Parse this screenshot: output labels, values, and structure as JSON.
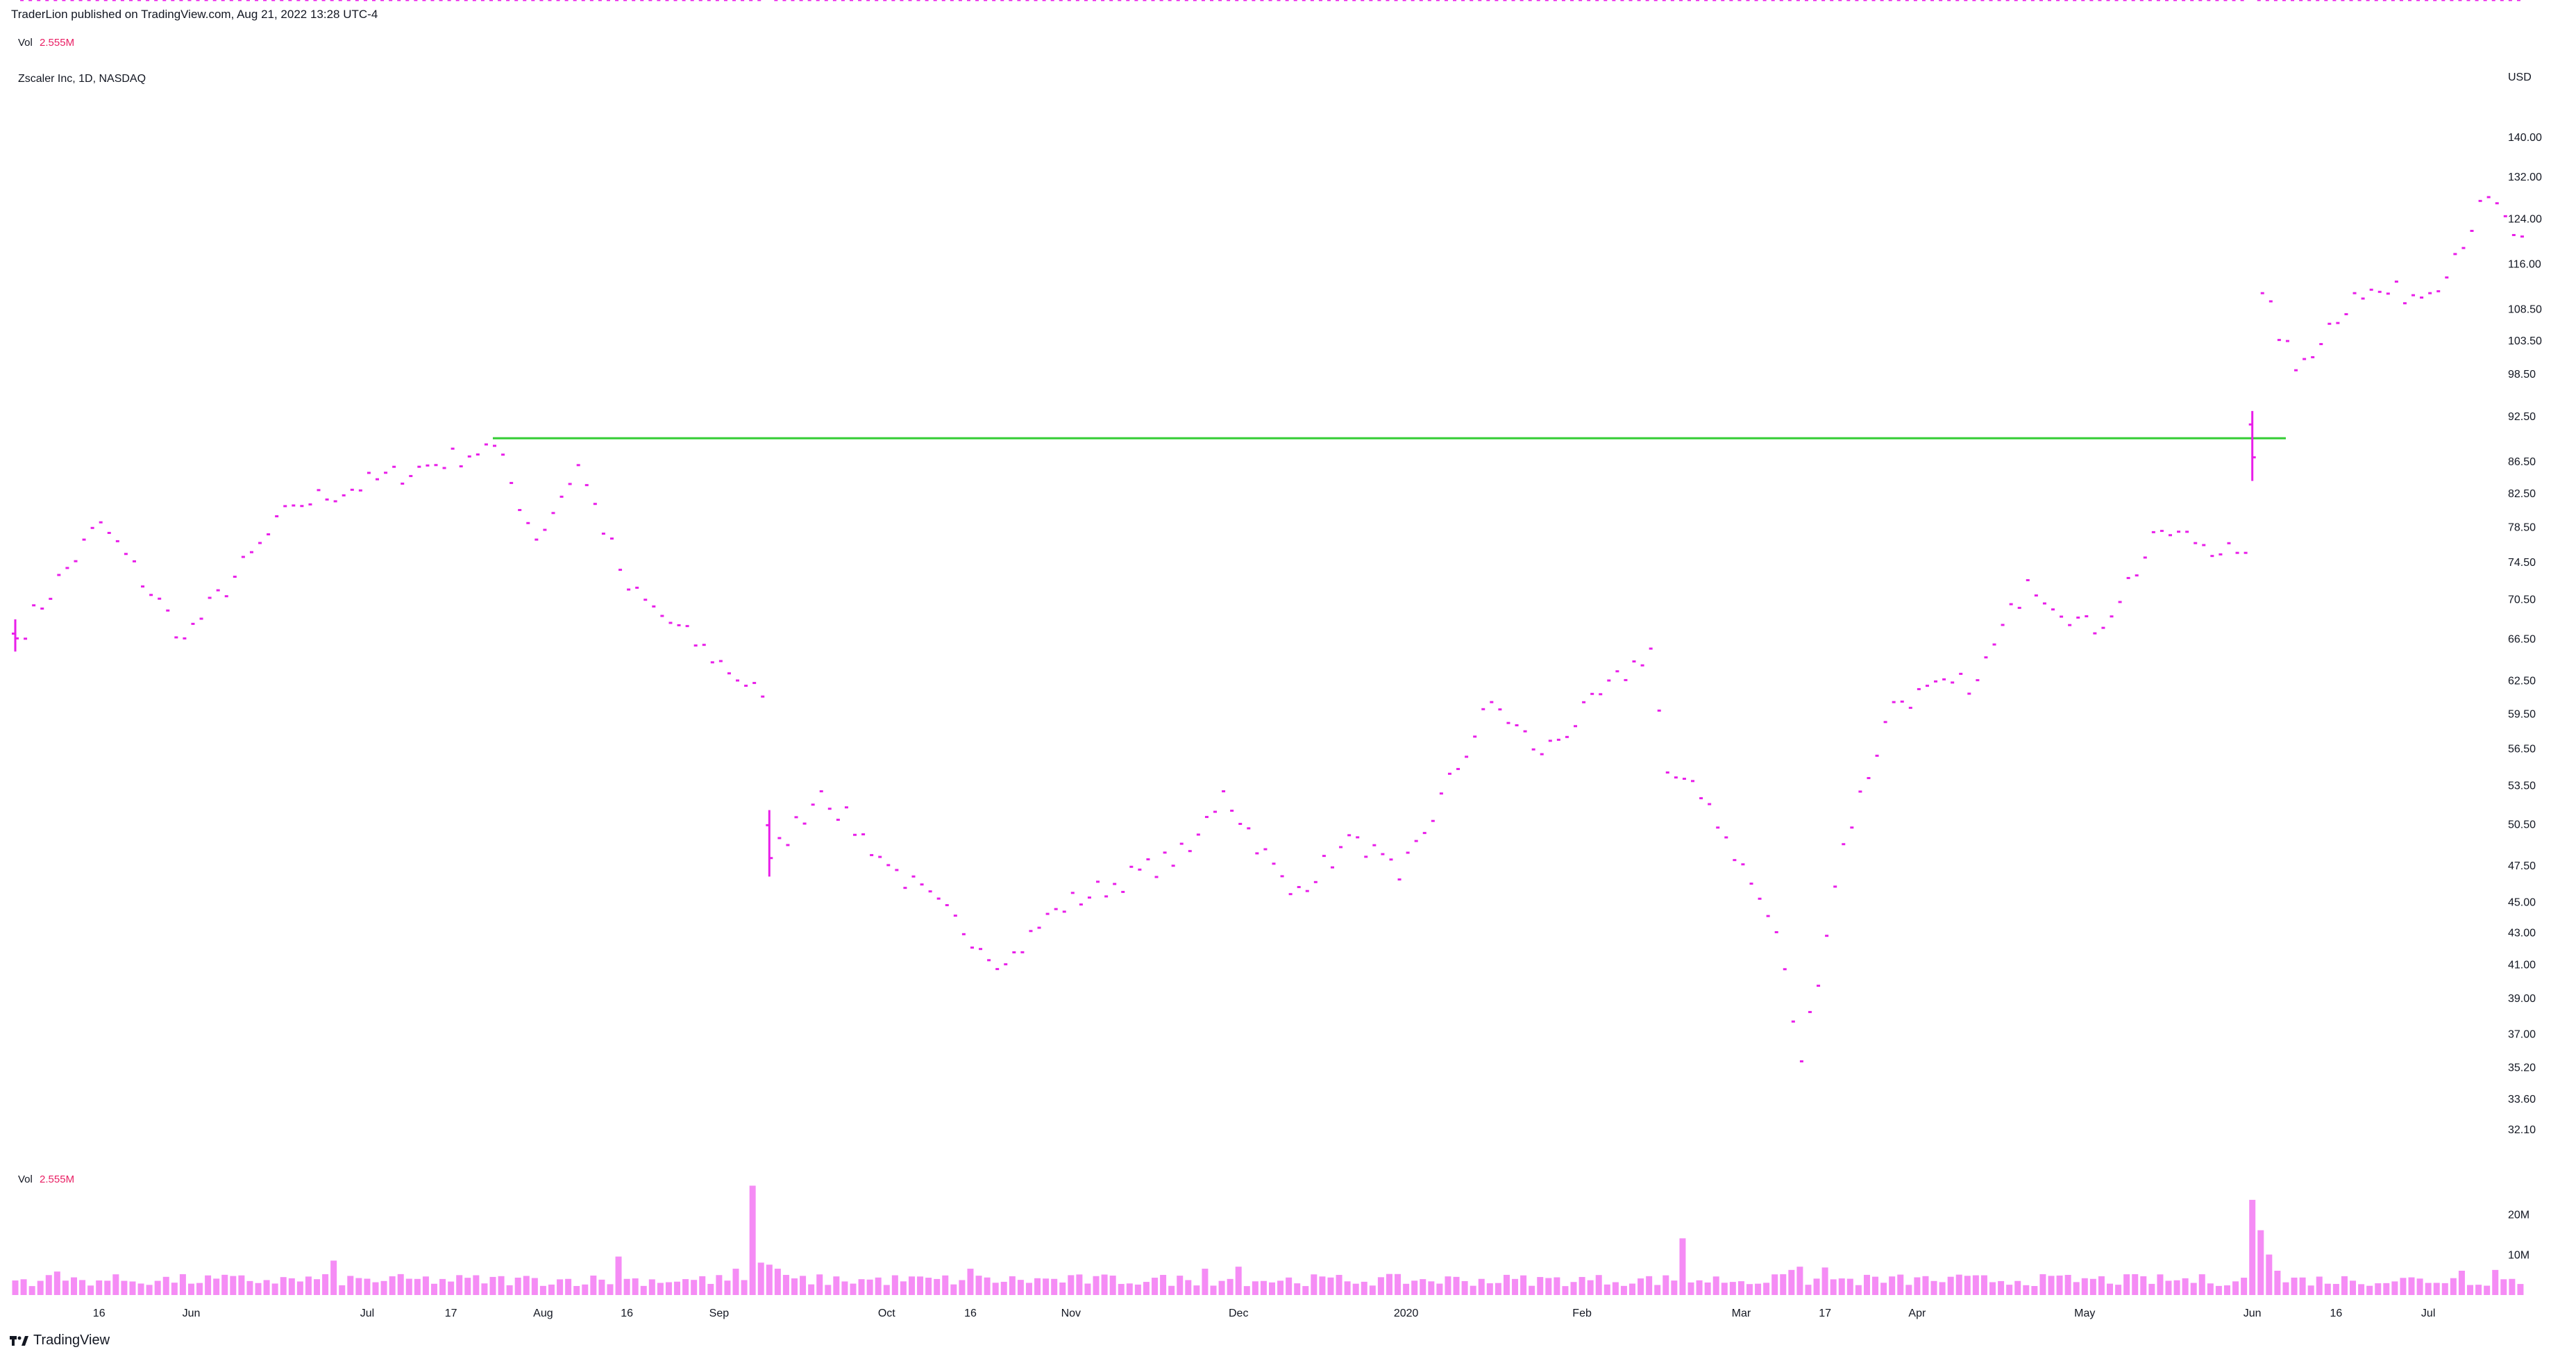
{
  "header": {
    "published": "TraderLion published on TradingView.com, Aug 21, 2022 13:28 UTC-4",
    "vol_label": "Vol",
    "vol_value": "2.555M",
    "symbol": "Zscaler Inc, 1D, NASDAQ"
  },
  "footer": {
    "brand": "TradingView"
  },
  "colors": {
    "up": "#2962ff",
    "down": "#e91ee9",
    "up_vol": "#7ea7f5",
    "down_vol": "#f58cf5",
    "resistance": "#33cc33",
    "vol_text": "#e91e63"
  },
  "chart_data": {
    "type": "ohlc",
    "symbol": "Zscaler Inc",
    "interval": "1D",
    "exchange": "NASDAQ",
    "currency": "USD",
    "scale": "log",
    "ylim": [
      31,
      150
    ],
    "y_ticks": [
      "140.00",
      "132.00",
      "124.00",
      "116.00",
      "108.50",
      "103.50",
      "98.50",
      "92.50",
      "86.50",
      "82.50",
      "78.50",
      "74.50",
      "70.50",
      "66.50",
      "62.50",
      "59.50",
      "56.50",
      "53.50",
      "50.50",
      "47.50",
      "45.00",
      "43.00",
      "41.00",
      "39.00",
      "37.00",
      "35.20",
      "33.60",
      "32.10"
    ],
    "x_ticks": [
      {
        "label": "16",
        "bar": 10
      },
      {
        "label": "Jun",
        "bar": 21
      },
      {
        "label": "Jul",
        "bar": 42
      },
      {
        "label": "17",
        "bar": 52
      },
      {
        "label": "Aug",
        "bar": 63
      },
      {
        "label": "16",
        "bar": 73
      },
      {
        "label": "Sep",
        "bar": 84
      },
      {
        "label": "Oct",
        "bar": 104
      },
      {
        "label": "16",
        "bar": 114
      },
      {
        "label": "Nov",
        "bar": 126
      },
      {
        "label": "Dec",
        "bar": 146
      },
      {
        "label": "2020",
        "bar": 166
      },
      {
        "label": "Feb",
        "bar": 187
      },
      {
        "label": "Mar",
        "bar": 206
      },
      {
        "label": "17",
        "bar": 216
      },
      {
        "label": "Apr",
        "bar": 227
      },
      {
        "label": "May",
        "bar": 247
      },
      {
        "label": "16",
        "bar": 277
      },
      {
        "label": "Jun",
        "bar": 267
      },
      {
        "label": "Jul",
        "bar": 288
      }
    ],
    "resistance_line": {
      "price": 89.5,
      "from_bar": 57,
      "to_bar": 271
    },
    "key_closes": [
      {
        "bar": 0,
        "close": 66.5
      },
      {
        "bar": 10,
        "close": 79.0
      },
      {
        "bar": 20,
        "close": 66.5
      },
      {
        "bar": 33,
        "close": 81.0
      },
      {
        "bar": 57,
        "close": 88.5
      },
      {
        "bar": 62,
        "close": 77.0
      },
      {
        "bar": 67,
        "close": 86.0
      },
      {
        "bar": 73,
        "close": 71.5
      },
      {
        "bar": 89,
        "close": 61.0
      },
      {
        "bar": 90,
        "close": 48.0
      },
      {
        "bar": 96,
        "close": 53.0
      },
      {
        "bar": 104,
        "close": 47.5
      },
      {
        "bar": 118,
        "close": 41.0
      },
      {
        "bar": 124,
        "close": 44.5
      },
      {
        "bar": 140,
        "close": 48.5
      },
      {
        "bar": 144,
        "close": 53.0
      },
      {
        "bar": 152,
        "close": 45.5
      },
      {
        "bar": 160,
        "close": 49.5
      },
      {
        "bar": 165,
        "close": 46.5
      },
      {
        "bar": 176,
        "close": 60.5
      },
      {
        "bar": 182,
        "close": 56.0
      },
      {
        "bar": 195,
        "close": 65.5
      },
      {
        "bar": 197,
        "close": 54.5
      },
      {
        "bar": 202,
        "close": 52.0
      },
      {
        "bar": 210,
        "close": 43.0
      },
      {
        "bar": 213,
        "close": 35.5
      },
      {
        "bar": 218,
        "close": 49.0
      },
      {
        "bar": 224,
        "close": 60.5
      },
      {
        "bar": 234,
        "close": 62.5
      },
      {
        "bar": 240,
        "close": 72.5
      },
      {
        "bar": 248,
        "close": 67.0
      },
      {
        "bar": 256,
        "close": 78.0
      },
      {
        "bar": 265,
        "close": 75.5
      },
      {
        "bar": 266,
        "close": 75.5
      },
      {
        "bar": 267,
        "close": 87.0
      },
      {
        "bar": 268,
        "close": 111.0
      },
      {
        "bar": 272,
        "close": 99.0
      },
      {
        "bar": 279,
        "close": 111.0
      },
      {
        "bar": 288,
        "close": 111.0
      },
      {
        "bar": 295,
        "close": 128.0
      },
      {
        "bar": 298,
        "close": 121.0
      }
    ],
    "gap_bars": [
      90,
      267
    ],
    "volume": {
      "ticks": [
        "20M",
        "10M"
      ],
      "ylim": [
        0,
        30000000
      ],
      "baseline": 4000000,
      "spikes": [
        {
          "bar": 5,
          "value": 5800000
        },
        {
          "bar": 38,
          "value": 8500000
        },
        {
          "bar": 72,
          "value": 9500000
        },
        {
          "bar": 86,
          "value": 6500000
        },
        {
          "bar": 88,
          "value": 27000000
        },
        {
          "bar": 89,
          "value": 8000000
        },
        {
          "bar": 90,
          "value": 7500000
        },
        {
          "bar": 91,
          "value": 6500000
        },
        {
          "bar": 114,
          "value": 6500000
        },
        {
          "bar": 142,
          "value": 6500000
        },
        {
          "bar": 146,
          "value": 7000000
        },
        {
          "bar": 199,
          "value": 14000000
        },
        {
          "bar": 212,
          "value": 6200000
        },
        {
          "bar": 213,
          "value": 7000000
        },
        {
          "bar": 216,
          "value": 6800000
        },
        {
          "bar": 267,
          "value": 23500000
        },
        {
          "bar": 268,
          "value": 16000000
        },
        {
          "bar": 269,
          "value": 10000000
        },
        {
          "bar": 270,
          "value": 6000000
        },
        {
          "bar": 292,
          "value": 6000000
        },
        {
          "bar": 296,
          "value": 6200000
        }
      ]
    }
  }
}
